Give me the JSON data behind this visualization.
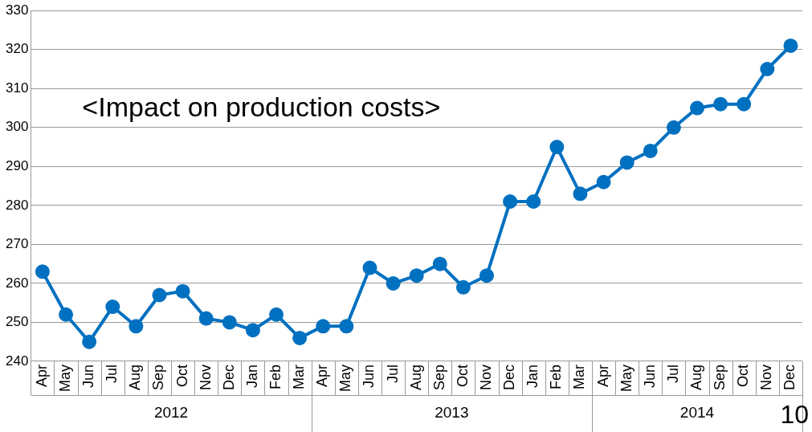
{
  "chart_data": {
    "type": "line",
    "categories": [
      "Apr",
      "May",
      "Jun",
      "Jul",
      "Aug",
      "Sep",
      "Oct",
      "Nov",
      "Dec",
      "Jan",
      "Feb",
      "Mar",
      "Apr",
      "May",
      "Jun",
      "Jul",
      "Aug",
      "Sep",
      "Oct",
      "Nov",
      "Dec",
      "Jan",
      "Feb",
      "Mar",
      "Apr",
      "May",
      "Jun",
      "Jul",
      "Aug",
      "Sep",
      "Oct",
      "Nov",
      "Dec"
    ],
    "series": [
      {
        "color": "#0070c0",
        "values": [
          263,
          252,
          245,
          254,
          249,
          257,
          258,
          251,
          250,
          248,
          252,
          246,
          249,
          249,
          264,
          260,
          262,
          265,
          259,
          262,
          281,
          281,
          295,
          283,
          286,
          291,
          294,
          300,
          305,
          306,
          306,
          315,
          321
        ]
      }
    ],
    "ylim": [
      240,
      330
    ],
    "yticks": [
      240,
      250,
      260,
      270,
      280,
      290,
      300,
      310,
      320,
      330
    ],
    "grid": "y",
    "legend": false,
    "marker": "circle",
    "line_style": "solid",
    "annotations": [
      "<Impact on production costs>",
      "2012",
      "2013",
      "2014",
      "10"
    ]
  }
}
